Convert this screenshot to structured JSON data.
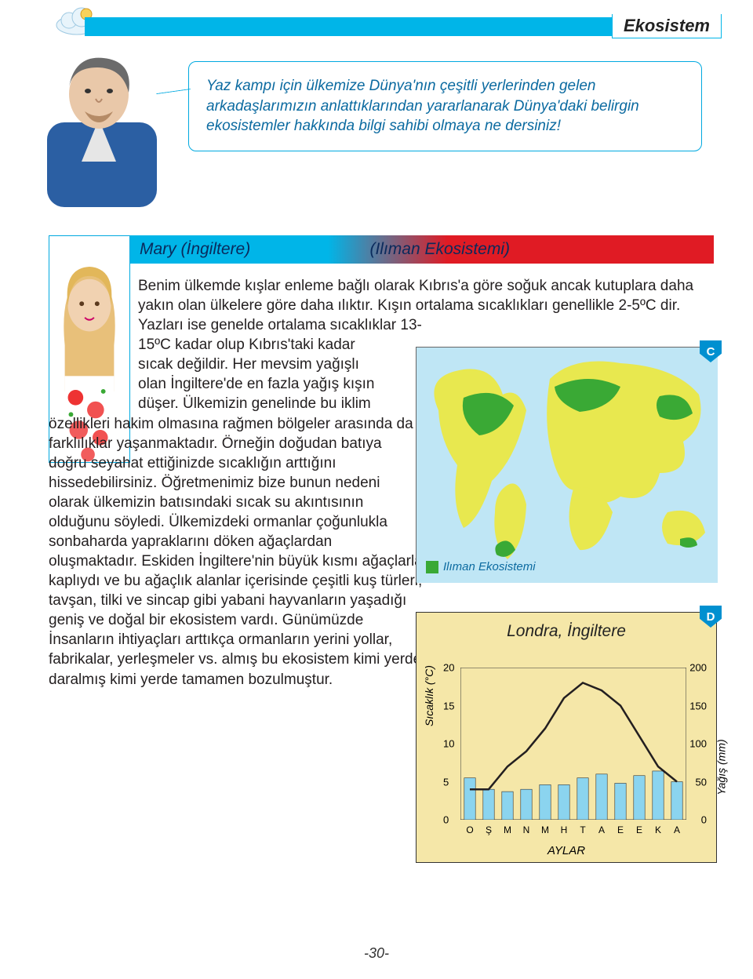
{
  "header": {
    "title": "Ekosistem"
  },
  "speech": {
    "text": "Yaz kampı için ülkemize Dünya'nın çeşitli yerlerinden gelen arkadaşlarımızın anlattıklarından yararlanarak Dünya'daki belirgin ekosistemler hakkında bilgi sahibi olmaya ne dersiniz!"
  },
  "profile": {
    "name": "Mary (İngiltere)",
    "ecosystem": "(Ilıman Ekosistemi)"
  },
  "body": {
    "p1": "Benim ülkemde kışlar enleme bağlı olarak Kıbrıs'a göre soğuk ancak kutuplara daha yakın olan ülkelere göre daha ılıktır. Kışın ortalama sıcaklıkları genellikle 2-5ºC dir. Yazları ise genelde ortalama sıcaklıklar 13-",
    "p2": "15ºC kadar olup Kıbrıs'taki kadar sıcak değildir. Her mevsim yağışlı olan İngiltere'de en fazla yağış kışın düşer. Ülkemizin genelinde bu iklim",
    "p3": "özellikleri hakim olmasına rağmen bölgeler arasında da farklılıklar yaşanmaktadır. Örneğin doğudan batıya doğru seyahat ettiğinizde sıcaklığın arttığını hissedebilirsiniz. Öğretmenimiz bize bunun nedeni olarak ülkemizin  batısındaki sıcak su akıntısının olduğunu söyledi. Ülkemizdeki ormanlar çoğunlukla sonbaharda yapraklarını döken ağaçlardan oluşmaktadır. Eskiden İngiltere'nin büyük kısmı ağaçlarla kaplıydı ve bu ağaçlık alanlar içerisinde çeşitli kuş türleri, tavşan, tilki ve sincap gibi yabani hayvanların yaşadığı geniş ve doğal bir ekosistem vardı. Günümüzde  İnsanların ihtiyaçları arttıkça ormanların yerini yollar, fabrikalar, yerleşmeler vs. almış bu ekosistem kimi yerde daralmış kimi yerde tamamen bozulmuştur."
  },
  "map": {
    "legend": "Ilıman Ekosistemi",
    "badge": "C",
    "ocean_color": "#bfe6f5",
    "land_color": "#e8e84f",
    "highlight_color": "#3aa935"
  },
  "chart": {
    "title": "Londra, İngiltere",
    "badge": "D",
    "bg": "#f5e7a8",
    "bar_color": "#8bd4ef",
    "line_color": "#231f20",
    "xlabel": "AYLAR",
    "ylabel_left": "Sıcaklık (°C)",
    "ylabel_right": "Yağış (mm)",
    "months": [
      "O",
      "Ş",
      "M",
      "N",
      "M",
      "H",
      "T",
      "A",
      "E",
      "E",
      "K",
      "A"
    ],
    "temp": [
      4,
      4,
      7,
      9,
      12,
      16,
      18,
      17,
      15,
      11,
      7,
      5
    ],
    "temp_ylim": [
      0,
      20
    ],
    "temp_ystep": 5,
    "precip": [
      55,
      40,
      37,
      40,
      46,
      46,
      55,
      60,
      48,
      58,
      64,
      50
    ],
    "precip_ylim": [
      0,
      200
    ],
    "precip_ystep": 50
  },
  "page": "-30-"
}
